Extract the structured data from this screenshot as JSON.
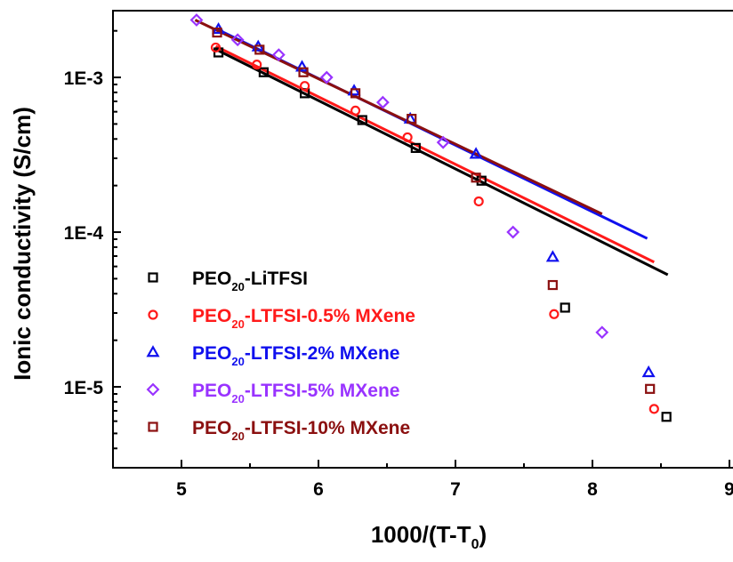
{
  "chart_data": {
    "type": "scatter",
    "title": "",
    "xlabel": {
      "main": "1000/(T-T",
      "sub": "0",
      "close": ")"
    },
    "ylabel": "Ionic conductivity (S/cm)",
    "x_scale": "linear",
    "y_scale": "log",
    "xlim": [
      4.5,
      9
    ],
    "ylim": [
      3e-06,
      0.0027
    ],
    "x_ticks": [
      5,
      6,
      7,
      8,
      9
    ],
    "x_tick_labels": [
      "5",
      "6",
      "7",
      "8",
      "9"
    ],
    "y_ticks": [
      0.001,
      0.0001,
      1e-05
    ],
    "y_tick_labels": [
      "1E-3",
      "1E-4",
      "1E-5"
    ],
    "grid": false,
    "legend_position": "lower-left",
    "series": [
      {
        "name": {
          "prefix": "PEO",
          "sub": "20",
          "suffix": "-LiTFSI"
        },
        "color": "#000000",
        "marker": "square",
        "x": [
          5.27,
          5.6,
          5.9,
          6.32,
          6.71,
          7.19,
          7.8,
          8.54
        ],
        "y": [
          0.00145,
          0.00108,
          0.00079,
          0.00053,
          0.00035,
          0.000215,
          3.25e-05,
          6.4e-06
        ],
        "fit": {
          "x": [
            5.25,
            8.55
          ],
          "y": [
            0.00152,
            5.3e-05
          ]
        }
      },
      {
        "name": {
          "prefix": "PEO",
          "sub": "20",
          "suffix": "-LTFSI-0.5% MXene"
        },
        "color": "#ff1a1a",
        "marker": "circle",
        "x": [
          5.25,
          5.55,
          5.9,
          6.27,
          6.65,
          7.17,
          7.72,
          8.45
        ],
        "y": [
          0.00156,
          0.00121,
          0.00088,
          0.00061,
          0.00041,
          0.000158,
          2.95e-05,
          7.2e-06
        ],
        "fit": {
          "x": [
            5.25,
            8.45
          ],
          "y": [
            0.00159,
            6.4e-05
          ]
        }
      },
      {
        "name": {
          "prefix": "PEO",
          "sub": "20",
          "suffix": "-LTFSI-2% MXene"
        },
        "color": "#1010ee",
        "marker": "triangle",
        "x": [
          5.27,
          5.56,
          5.88,
          6.26,
          6.67,
          7.15,
          7.71,
          8.41
        ],
        "y": [
          0.00205,
          0.00158,
          0.00117,
          0.00082,
          0.00054,
          0.00032,
          6.9e-05,
          1.24e-05
        ],
        "fit": {
          "x": [
            5.25,
            8.4
          ],
          "y": [
            0.00207,
            9.1e-05
          ]
        }
      },
      {
        "name": {
          "prefix": "PEO",
          "sub": "20",
          "suffix": "-LTFSI-5% MXene"
        },
        "color": "#9933ff",
        "marker": "diamond",
        "x": [
          5.11,
          5.41,
          5.71,
          6.06,
          6.47,
          6.91,
          7.42,
          8.07
        ],
        "y": [
          0.00235,
          0.00175,
          0.0014,
          0.001,
          0.00069,
          0.00038,
          0.0001,
          2.25e-05
        ],
        "fit": null
      },
      {
        "name": {
          "prefix": "PEO",
          "sub": "20",
          "suffix": "-LTFSI-10% MXene"
        },
        "color": "#8b1010",
        "marker": "square",
        "x": [
          5.26,
          5.57,
          5.89,
          6.27,
          6.68,
          7.15,
          7.71,
          8.42
        ],
        "y": [
          0.00195,
          0.00151,
          0.00108,
          0.00079,
          0.00054,
          0.000225,
          4.55e-05,
          9.7e-06
        ],
        "fit": {
          "x": [
            5.1,
            8.07
          ],
          "y": [
            0.00235,
            0.000131
          ]
        }
      }
    ]
  }
}
